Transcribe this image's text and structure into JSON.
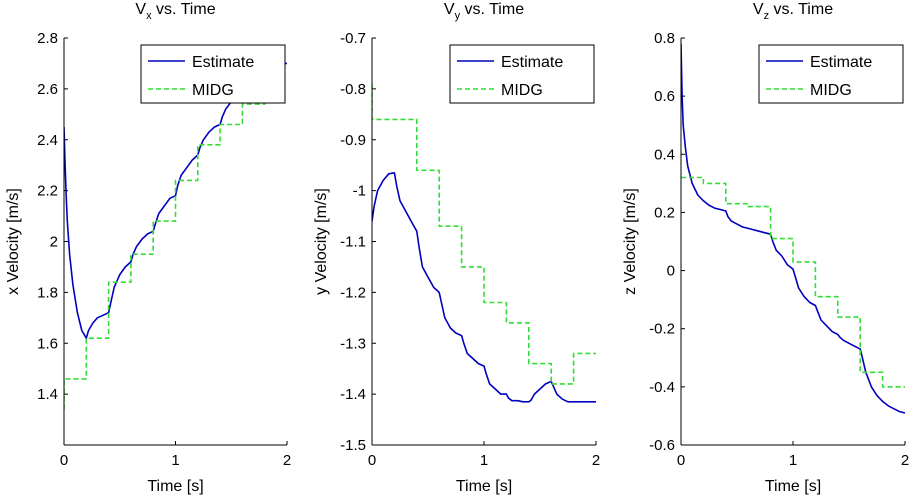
{
  "colors": {
    "estimate": "#0000bf",
    "midg": "#33dd33",
    "axis": "#000000",
    "background": "#ffffff"
  },
  "chart_data": [
    {
      "type": "line",
      "title": "V_x vs. Time",
      "title_main": "V",
      "title_sub": "x",
      "title_rest": " vs. Time",
      "xlabel": "Time [s]",
      "ylabel": "x Velocity [m/s]",
      "xlim": [
        0,
        2
      ],
      "ylim": [
        1.2,
        2.8
      ],
      "xticks": [
        0,
        1,
        2
      ],
      "xtick_labels": [
        "0",
        "1",
        "2"
      ],
      "yticks": [
        1.4,
        1.6,
        1.8,
        2.0,
        2.2,
        2.4,
        2.6,
        2.8
      ],
      "ytick_labels": [
        "1.4",
        "1.6",
        "1.8",
        "2",
        "2.2",
        "2.4",
        "2.6",
        "2.8"
      ],
      "legend": {
        "placement": "top-right",
        "entries": [
          "Estimate",
          "MIDG"
        ]
      },
      "series": [
        {
          "name": "Estimate",
          "style": "solid",
          "x": [
            0,
            0.01,
            0.02,
            0.03,
            0.05,
            0.08,
            0.12,
            0.16,
            0.2,
            0.22,
            0.26,
            0.3,
            0.35,
            0.4,
            0.42,
            0.45,
            0.5,
            0.55,
            0.6,
            0.62,
            0.65,
            0.7,
            0.75,
            0.8,
            0.82,
            0.85,
            0.9,
            0.95,
            1.0,
            1.02,
            1.05,
            1.1,
            1.15,
            1.2,
            1.22,
            1.25,
            1.3,
            1.35,
            1.4,
            1.42,
            1.45,
            1.5,
            1.55,
            1.6,
            1.62,
            1.65,
            1.7,
            1.75,
            1.8,
            1.85,
            1.9,
            1.95,
            2.0
          ],
          "y": [
            2.45,
            2.3,
            2.18,
            2.08,
            1.95,
            1.83,
            1.72,
            1.65,
            1.62,
            1.65,
            1.68,
            1.7,
            1.71,
            1.72,
            1.76,
            1.82,
            1.87,
            1.9,
            1.92,
            1.95,
            1.98,
            2.01,
            2.03,
            2.04,
            2.07,
            2.11,
            2.14,
            2.17,
            2.18,
            2.22,
            2.26,
            2.29,
            2.32,
            2.34,
            2.37,
            2.4,
            2.43,
            2.45,
            2.46,
            2.49,
            2.52,
            2.55,
            2.57,
            2.58,
            2.61,
            2.63,
            2.65,
            2.66,
            2.67,
            2.68,
            2.69,
            2.7,
            2.7
          ]
        },
        {
          "name": "MIDG",
          "style": "dashed",
          "x": [
            0,
            0,
            0.2,
            0.2,
            0.4,
            0.4,
            0.6,
            0.6,
            0.8,
            0.8,
            1.0,
            1.0,
            1.2,
            1.2,
            1.4,
            1.4,
            1.6,
            1.6,
            1.8,
            1.8,
            2.0
          ],
          "y": [
            1.34,
            1.46,
            1.46,
            1.62,
            1.62,
            1.84,
            1.84,
            1.95,
            1.95,
            2.08,
            2.08,
            2.24,
            2.24,
            2.38,
            2.38,
            2.46,
            2.46,
            2.54,
            2.54,
            2.63,
            2.63
          ]
        }
      ]
    },
    {
      "type": "line",
      "title": "V_y vs. Time",
      "title_main": "V",
      "title_sub": "y",
      "title_rest": " vs. Time",
      "xlabel": "Time [s]",
      "ylabel": "y Velocity [m/s]",
      "xlim": [
        0,
        2
      ],
      "ylim": [
        -1.5,
        -0.7
      ],
      "xticks": [
        0,
        1,
        2
      ],
      "xtick_labels": [
        "0",
        "1",
        "2"
      ],
      "yticks": [
        -1.5,
        -1.4,
        -1.3,
        -1.2,
        -1.1,
        -1.0,
        -0.9,
        -0.8,
        -0.7
      ],
      "ytick_labels": [
        "-1.5",
        "-1.4",
        "-1.3",
        "-1.2",
        "-1.1",
        "-1",
        "-0.9",
        "-0.8",
        "-0.7"
      ],
      "legend": {
        "placement": "top-right",
        "entries": [
          "Estimate",
          "MIDG"
        ]
      },
      "series": [
        {
          "name": "Estimate",
          "style": "solid",
          "x": [
            0,
            0.02,
            0.05,
            0.1,
            0.15,
            0.2,
            0.22,
            0.25,
            0.3,
            0.35,
            0.4,
            0.42,
            0.45,
            0.5,
            0.55,
            0.6,
            0.62,
            0.65,
            0.7,
            0.75,
            0.8,
            0.82,
            0.85,
            0.9,
            0.95,
            1.0,
            1.02,
            1.05,
            1.1,
            1.15,
            1.2,
            1.22,
            1.25,
            1.3,
            1.35,
            1.4,
            1.42,
            1.45,
            1.5,
            1.55,
            1.6,
            1.65,
            1.7,
            1.75,
            1.78,
            1.8,
            1.85,
            1.9,
            1.95,
            2.0
          ],
          "y": [
            -1.06,
            -1.03,
            -1.0,
            -0.98,
            -0.967,
            -0.965,
            -0.99,
            -1.02,
            -1.04,
            -1.06,
            -1.08,
            -1.11,
            -1.15,
            -1.17,
            -1.19,
            -1.2,
            -1.22,
            -1.25,
            -1.27,
            -1.28,
            -1.285,
            -1.3,
            -1.32,
            -1.33,
            -1.34,
            -1.345,
            -1.36,
            -1.38,
            -1.39,
            -1.4,
            -1.4,
            -1.408,
            -1.413,
            -1.413,
            -1.415,
            -1.415,
            -1.412,
            -1.4,
            -1.39,
            -1.38,
            -1.375,
            -1.4,
            -1.41,
            -1.415,
            -1.415,
            -1.415,
            -1.415,
            -1.415,
            -1.415,
            -1.415
          ]
        },
        {
          "name": "MIDG",
          "style": "dashed",
          "x": [
            0,
            0,
            0.4,
            0.4,
            0.6,
            0.6,
            0.8,
            0.8,
            1.0,
            1.0,
            1.2,
            1.2,
            1.4,
            1.4,
            1.6,
            1.6,
            1.8,
            1.8,
            2.0
          ],
          "y": [
            -0.79,
            -0.86,
            -0.86,
            -0.96,
            -0.96,
            -1.07,
            -1.07,
            -1.15,
            -1.15,
            -1.22,
            -1.22,
            -1.26,
            -1.26,
            -1.34,
            -1.34,
            -1.38,
            -1.38,
            -1.32,
            -1.32
          ]
        }
      ]
    },
    {
      "type": "line",
      "title": "V_z vs. Time",
      "title_main": "V",
      "title_sub": "z",
      "title_rest": " vs. Time",
      "xlabel": "Time [s]",
      "ylabel": "z Velocity [m/s]",
      "xlim": [
        0,
        2
      ],
      "ylim": [
        -0.6,
        0.8
      ],
      "xticks": [
        0,
        1,
        2
      ],
      "xtick_labels": [
        "0",
        "1",
        "2"
      ],
      "yticks": [
        -0.6,
        -0.4,
        -0.2,
        0,
        0.2,
        0.4,
        0.6,
        0.8
      ],
      "ytick_labels": [
        "-0.6",
        "-0.4",
        "-0.2",
        "0",
        "0.2",
        "0.4",
        "0.6",
        "0.8"
      ],
      "legend": {
        "placement": "top-right",
        "entries": [
          "Estimate",
          "MIDG"
        ]
      },
      "series": [
        {
          "name": "Estimate",
          "style": "solid",
          "x": [
            0,
            0.01,
            0.02,
            0.04,
            0.06,
            0.1,
            0.15,
            0.2,
            0.25,
            0.3,
            0.35,
            0.4,
            0.42,
            0.45,
            0.5,
            0.55,
            0.6,
            0.65,
            0.7,
            0.75,
            0.8,
            0.82,
            0.85,
            0.9,
            0.95,
            1.0,
            1.02,
            1.05,
            1.1,
            1.15,
            1.2,
            1.22,
            1.25,
            1.3,
            1.35,
            1.4,
            1.42,
            1.45,
            1.5,
            1.55,
            1.6,
            1.62,
            1.65,
            1.7,
            1.75,
            1.8,
            1.85,
            1.9,
            1.95,
            2.0
          ],
          "y": [
            0.78,
            0.6,
            0.5,
            0.42,
            0.36,
            0.3,
            0.26,
            0.24,
            0.225,
            0.215,
            0.21,
            0.205,
            0.185,
            0.17,
            0.16,
            0.15,
            0.145,
            0.14,
            0.135,
            0.13,
            0.125,
            0.1,
            0.07,
            0.05,
            0.02,
            0.005,
            -0.02,
            -0.06,
            -0.09,
            -0.11,
            -0.12,
            -0.14,
            -0.17,
            -0.19,
            -0.21,
            -0.22,
            -0.23,
            -0.24,
            -0.25,
            -0.26,
            -0.27,
            -0.3,
            -0.35,
            -0.4,
            -0.43,
            -0.45,
            -0.465,
            -0.475,
            -0.485,
            -0.49
          ]
        },
        {
          "name": "MIDG",
          "style": "dashed",
          "x": [
            0,
            0.2,
            0.2,
            0.4,
            0.4,
            0.6,
            0.6,
            0.8,
            0.8,
            1.0,
            1.0,
            1.2,
            1.2,
            1.4,
            1.4,
            1.6,
            1.6,
            1.8,
            1.8,
            2.0
          ],
          "y": [
            0.32,
            0.32,
            0.3,
            0.3,
            0.23,
            0.23,
            0.22,
            0.22,
            0.11,
            0.11,
            0.03,
            0.03,
            -0.09,
            -0.09,
            -0.16,
            -0.16,
            -0.35,
            -0.35,
            -0.4,
            -0.4
          ]
        }
      ]
    }
  ]
}
